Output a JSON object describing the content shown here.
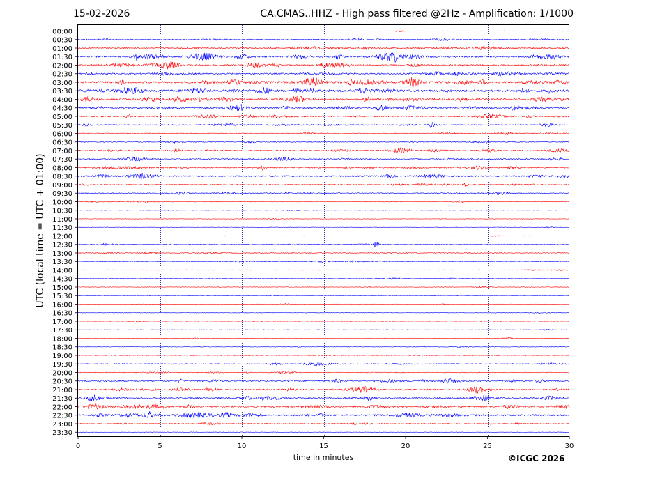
{
  "header": {
    "date": "15-02-2026",
    "title": "CA.CMAS..HHZ - High pass filtered @2Hz - Amplification: 1/1000"
  },
  "footer": {
    "credit": "©ICGC 2026"
  },
  "chart_data": {
    "type": "line",
    "subtype": "helicorder",
    "xlabel": "time in minutes",
    "ylabel": "UTC (local time = UTC + 01:00)",
    "xlim": [
      0,
      30
    ],
    "x_ticks": [
      0,
      5,
      10,
      15,
      20,
      25,
      30
    ],
    "vertical_gridlines_at": [
      5,
      10,
      15,
      20,
      25
    ],
    "grid": "dotted vertical lines",
    "colors": {
      "odd": "#ff0000",
      "even": "#0000ff",
      "grid": "#000080"
    },
    "row_labels": [
      "00:00",
      "00:30",
      "01:00",
      "01:30",
      "02:00",
      "02:30",
      "03:00",
      "03:30",
      "04:00",
      "04:30",
      "05:00",
      "05:30",
      "06:00",
      "06:30",
      "07:00",
      "07:30",
      "08:00",
      "08:30",
      "09:00",
      "09:30",
      "10:00",
      "10:30",
      "11:00",
      "11:30",
      "12:00",
      "12:30",
      "13:00",
      "13:30",
      "14:00",
      "14:30",
      "15:00",
      "15:30",
      "16:00",
      "16:30",
      "17:00",
      "17:30",
      "18:00",
      "18:30",
      "19:00",
      "19:30",
      "20:00",
      "20:30",
      "21:00",
      "21:30",
      "22:00",
      "22:30",
      "23:00",
      "23:30"
    ],
    "row_colors": [
      "red",
      "blue",
      "red",
      "blue",
      "red",
      "blue",
      "red",
      "blue",
      "red",
      "blue",
      "red",
      "blue",
      "red",
      "blue",
      "red",
      "blue",
      "red",
      "blue",
      "red",
      "blue",
      "red",
      "blue",
      "red",
      "blue",
      "red",
      "blue",
      "red",
      "blue",
      "red",
      "blue",
      "red",
      "blue",
      "red",
      "blue",
      "red",
      "blue",
      "red",
      "blue",
      "red",
      "blue",
      "red",
      "blue",
      "red",
      "blue",
      "red",
      "blue",
      "red",
      "blue"
    ],
    "row_activity": [
      0.2,
      1.0,
      1.6,
      2.6,
      2.2,
      2.0,
      3.0,
      3.4,
      2.8,
      2.5,
      1.8,
      1.3,
      1.0,
      0.8,
      1.6,
      1.5,
      1.6,
      1.9,
      1.2,
      1.1,
      0.6,
      0.3,
      0.15,
      0.1,
      0.1,
      0.6,
      0.8,
      0.7,
      0.4,
      0.4,
      0.3,
      0.2,
      0.3,
      0.2,
      0.3,
      0.15,
      0.25,
      0.3,
      0.4,
      1.0,
      0.6,
      1.8,
      2.0,
      2.0,
      2.6,
      2.4,
      1.0,
      0.2
    ],
    "notable_events": [
      {
        "row": "01:30",
        "minute": 3.5,
        "amp": 4
      },
      {
        "row": "01:30",
        "minute": 15.9,
        "amp": 4
      },
      {
        "row": "03:00",
        "minute": 24.7,
        "amp": 3
      },
      {
        "row": "03:30",
        "minute": 28.8,
        "amp": 3
      },
      {
        "row": "05:30",
        "minute": 21.6,
        "amp": 3
      },
      {
        "row": "08:00",
        "minute": 11.2,
        "amp": 3
      },
      {
        "row": "12:30",
        "minute": 18.2,
        "amp": 3
      },
      {
        "row": "22:30",
        "minute": 14.8,
        "amp": 2.5
      }
    ]
  }
}
